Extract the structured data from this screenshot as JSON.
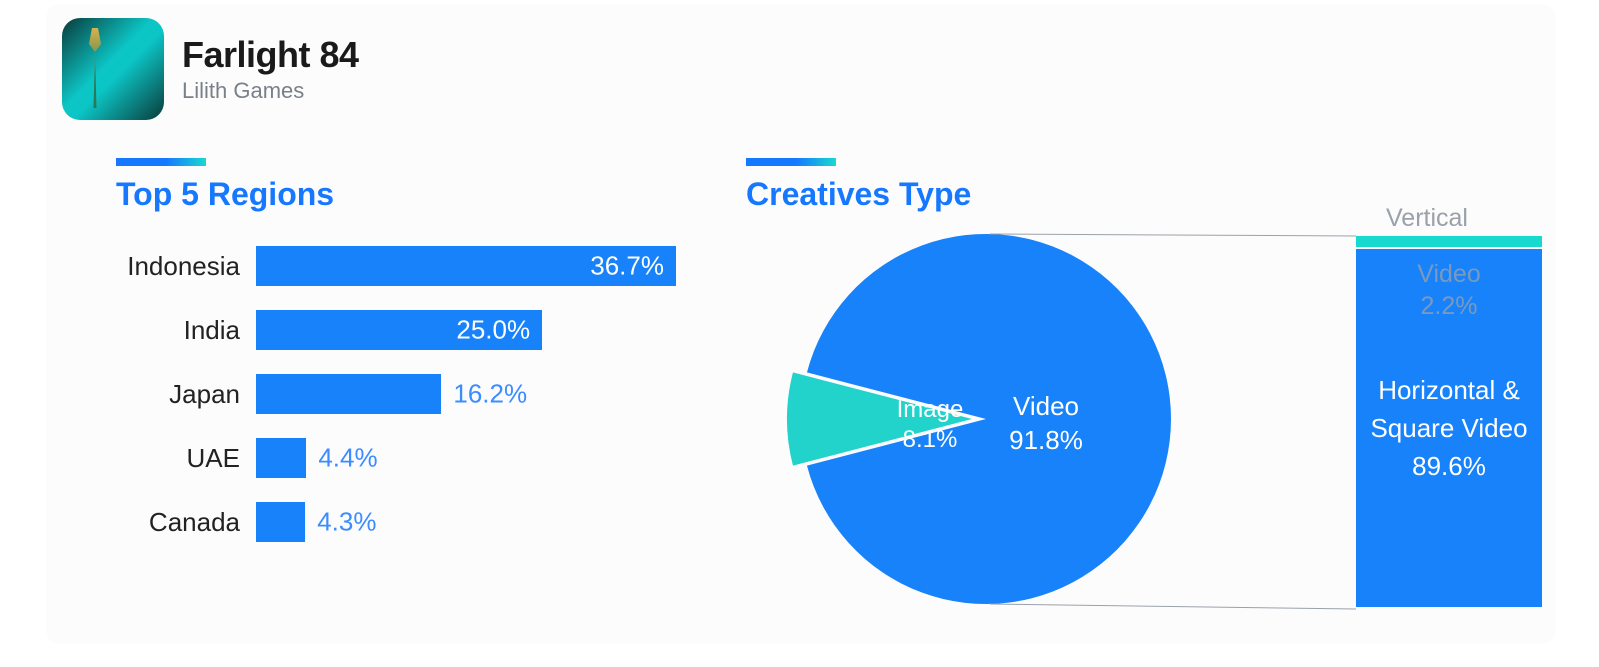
{
  "app": {
    "name": "Farlight 84",
    "publisher": "Lilith Games"
  },
  "accent_gradient": [
    "#1677ff",
    "#18d9d0"
  ],
  "regions_chart": {
    "title": "Top 5 Regions",
    "title_color": "#1677ff",
    "title_fontsize": 32,
    "bar_color": "#1882fb",
    "label_fontsize": 26,
    "max_value": 36.7,
    "inside_text_color": "#ffffff",
    "outside_text_color": "#3b8cff",
    "inside_threshold": 16.3,
    "items": [
      {
        "label": "Indonesia",
        "value": 36.7,
        "value_text": "36.7%"
      },
      {
        "label": "India",
        "value": 25.0,
        "value_text": "25.0%"
      },
      {
        "label": "Japan",
        "value": 16.2,
        "value_text": "16.2%"
      },
      {
        "label": "UAE",
        "value": 4.4,
        "value_text": "4.4%"
      },
      {
        "label": "Canada",
        "value": 4.3,
        "value_text": "4.3%"
      }
    ]
  },
  "creatives_chart": {
    "title": "Creatives Type",
    "title_color": "#1677ff",
    "pie_radius": 185,
    "slices": [
      {
        "name": "Video",
        "value": 91.8,
        "value_text": "91.8%",
        "color": "#1882fb",
        "label_color": "#ffffff"
      },
      {
        "name": "Image",
        "value": 8.1,
        "value_text": "8.1%",
        "color": "#22d3cc",
        "label_color": "#ffffff"
      }
    ],
    "breakdown": {
      "header": "Vertical",
      "items": [
        {
          "name": "Video",
          "value": 2.2,
          "value_text": "2.2%",
          "color": "#18d9d0",
          "label_color": "#9aa1a9"
        },
        {
          "name": "Horizontal & Square Video",
          "value": 89.6,
          "value_text": "89.6%",
          "color": "#1882fb",
          "label_color": "#ffffff"
        }
      ]
    }
  },
  "background_color": "#fcfcfd"
}
